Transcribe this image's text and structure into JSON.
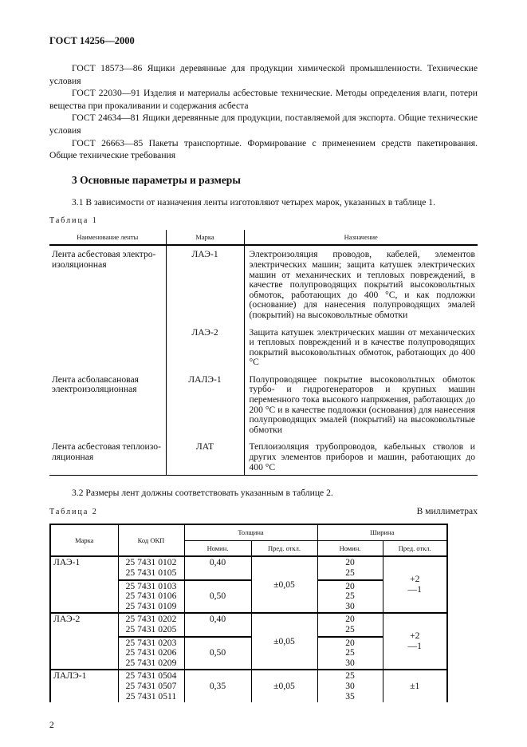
{
  "header": "ГОСТ 14256—2000",
  "references": [
    "ГОСТ 18573—86 Ящики деревянные для продукции химической промышленности. Технические условия",
    "ГОСТ 22030—91 Изделия и материалы асбестовые технические. Методы определения влаги, потери вещества при прокаливании и содержания асбеста",
    "ГОСТ 24634—81 Ящики деревянные для продукции, поставляемой для экспорта. Общие технические условия",
    "ГОСТ 26663—85 Пакеты транспортные. Формирование с применением средств пакетирования. Общие технические требования"
  ],
  "section_title": "3 Основные параметры и размеры",
  "p31": "3.1 В зависимости от назначения ленты изготовляют четырех марок, указанных в таблице 1.",
  "table1": {
    "caption": "Таблица 1",
    "headers": [
      "Наименование ленты",
      "Марка",
      "Назначение"
    ],
    "rows": [
      {
        "name": "Лента асбестовая электро-изоляционная",
        "mark": "ЛАЭ-1",
        "purpose": "Электроизоляция проводов, кабелей, элементов электрических машин; защита катушек электрических машин от механических и тепловых повреждений, в качестве полупроводящих покрытий высоковольтных обмоток, работающих до 400 °С, и как подложки (основание) для нанесения полупроводящих эмалей (покрытий) на высоковольтные обмотки"
      },
      {
        "name": "",
        "mark": "ЛАЭ-2",
        "purpose": "Защита катушек электрических машин от механических и тепловых повреждений и в качестве полупроводящих покрытий высоковольтных обмоток, работающих до 400 °С"
      },
      {
        "name": "Лента асболавсановая электроизоляционная",
        "mark": "ЛАЛЭ-1",
        "purpose": "Полупроводящее покрытие высоковольтных обмоток турбо- и гидрогенераторов и крупных машин переменного тока высокого напряжения, работающих до 200 °С и в качестве подложки (основания) для нанесения полупроводящих эмалей (покрытий) на высоковольтные обмотки"
      },
      {
        "name": "Лента асбестовая теплоизо-ляционная",
        "mark": "ЛАТ",
        "purpose": "Теплоизоляция трубопроводов, кабельных стволов и других элементов приборов и машин, работающих до 400 °С"
      }
    ]
  },
  "p32": "3.2 Размеры лент должны соответствовать указанным в таблице 2.",
  "table2": {
    "caption": "Таблица 2",
    "units": "В миллиметрах",
    "headers": {
      "mark": "Марка",
      "code": "Код ОКП",
      "thickness": "Толщина",
      "width": "Ширина",
      "nom": "Номин.",
      "tol": "Пред. откл."
    },
    "groups": [
      {
        "mark": "ЛАЭ-1",
        "thk_tol": "±0,05",
        "wid_tol_plus": "+2",
        "wid_tol_minus": "—1",
        "sub": [
          {
            "codes": "25 7431 0102\n25 7431 0105",
            "thk": "0,40",
            "wid": "20\n25"
          },
          {
            "codes": "25 7431 0103\n25 7431 0106\n25 7431 0109",
            "thk": "0,50",
            "wid": "20\n25\n30"
          }
        ]
      },
      {
        "mark": "ЛАЭ-2",
        "thk_tol": "±0,05",
        "wid_tol_plus": "+2",
        "wid_tol_minus": "—1",
        "sub": [
          {
            "codes": "25 7431 0202\n25 7431 0205",
            "thk": "0,40",
            "wid": "20\n25"
          },
          {
            "codes": "25 7431 0203\n25 7431 0206\n25 7431 0209",
            "thk": "0,50",
            "wid": "20\n25\n30"
          }
        ]
      },
      {
        "mark": "ЛАЛЭ-1",
        "thk_tol": "±0,05",
        "wid_tol": "±1",
        "sub": [
          {
            "codes": "25 7431 0504\n25 7431 0507\n25 7431 0511",
            "thk": "0,35",
            "wid": "25\n30\n35"
          }
        ]
      }
    ]
  },
  "page_number": "2"
}
